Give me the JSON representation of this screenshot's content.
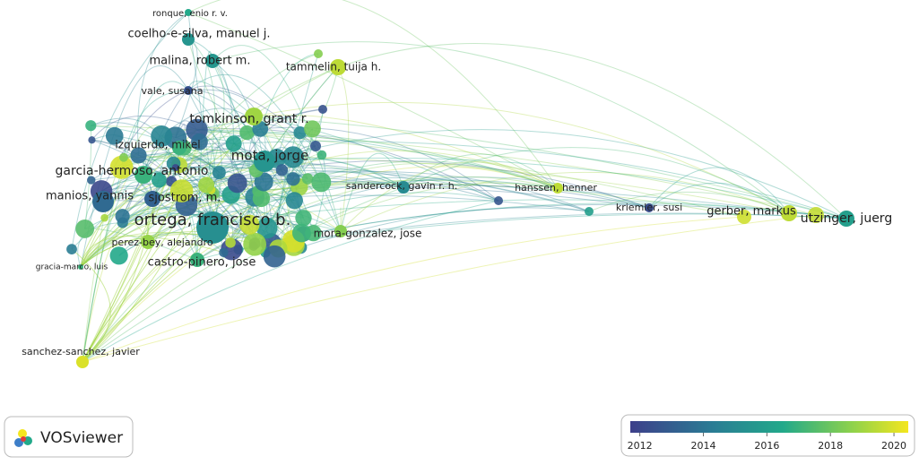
{
  "nodes": [
    {
      "label": "ronque, enio r. v.",
      "year": 2016.5
    },
    {
      "label": "coelho-e-silva, manuel j.",
      "year": 2015.5
    },
    {
      "label": "malina, robert m.",
      "year": 2015.6
    },
    {
      "label": "tammelin, tuija h.",
      "year": 2019.5
    },
    {
      "label": "vale, susana",
      "year": 2012.5
    },
    {
      "label": "tomkinson, grant r.",
      "year": 2019
    },
    {
      "label": "izquierdo, mikel",
      "year": 2017
    },
    {
      "label": "mota, jorge",
      "year": 2015.5
    },
    {
      "label": "garcia-hermoso, antonio",
      "year": 2017
    },
    {
      "label": "manios, yannis",
      "year": 2013.5
    },
    {
      "label": "sjostrom, m.",
      "year": 2013.2
    },
    {
      "label": "ortega, francisco b.",
      "year": 2015.2
    },
    {
      "label": "sandercock, gavin r. h.",
      "year": 2015
    },
    {
      "label": "hanssen, henner",
      "year": 2019.5
    },
    {
      "label": "kriemler, susi",
      "year": 2012.3
    },
    {
      "label": "gerber, markus",
      "year": 2019.5
    },
    {
      "label": "utzinger, juerg",
      "year": 2016
    },
    {
      "label": "mora-gonzalez, jose",
      "year": 2018.5
    },
    {
      "label": "perez-bey, alejandro",
      "year": 2018.8
    },
    {
      "label": "castro-pinero, jose",
      "year": 2017
    },
    {
      "label": "gracia-marco, luis",
      "year": 2017
    },
    {
      "label": "sanchez-sanchez, javier",
      "year": 2020
    }
  ],
  "logo": {
    "text": "VOSviewer"
  },
  "colorbar": {
    "range": [
      2011.7,
      2020.45
    ],
    "ticks": [
      2012,
      2014,
      2016,
      2018,
      2020
    ]
  }
}
